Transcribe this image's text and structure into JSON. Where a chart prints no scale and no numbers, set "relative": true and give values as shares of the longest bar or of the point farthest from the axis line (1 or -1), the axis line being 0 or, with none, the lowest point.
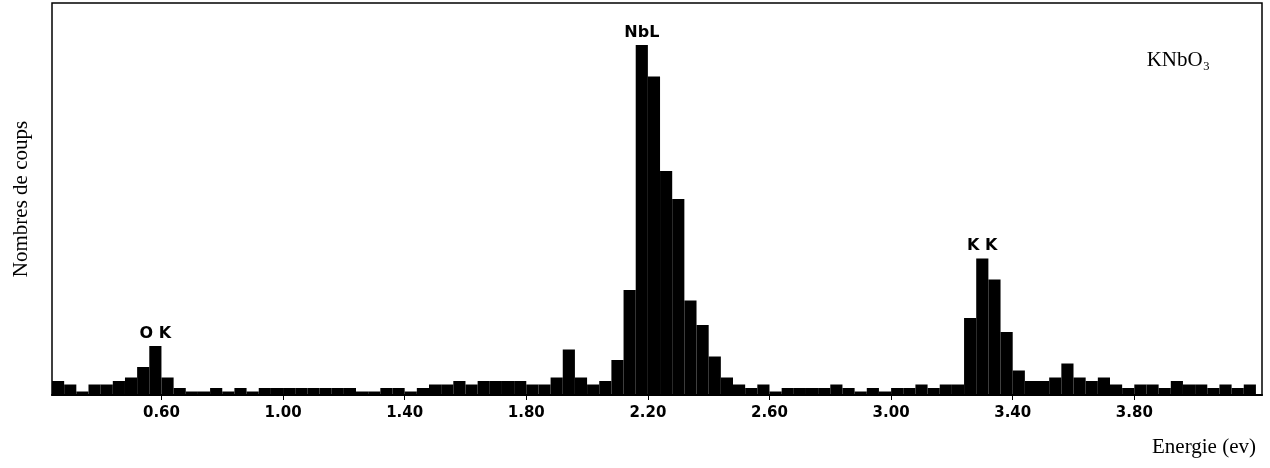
{
  "chart_data": {
    "type": "bar",
    "relative": true,
    "ylabel": "Nombres de coups",
    "xlabel": "Energie (ev)",
    "annotations": [
      "KNbO₃",
      {
        "text": "O K",
        "x": 0.58,
        "y": 0.14
      },
      {
        "text": "NbL",
        "x": 2.18,
        "y": 1.0
      },
      {
        "text": "K K",
        "x": 3.3,
        "y": 0.39
      }
    ],
    "x": [
      0.26,
      0.3,
      0.34,
      0.38,
      0.42,
      0.46,
      0.5,
      0.54,
      0.58,
      0.62,
      0.66,
      0.7,
      0.74,
      0.78,
      0.82,
      0.86,
      0.9,
      0.94,
      0.98,
      1.02,
      1.06,
      1.1,
      1.14,
      1.18,
      1.22,
      1.26,
      1.3,
      1.34,
      1.38,
      1.42,
      1.46,
      1.5,
      1.54,
      1.58,
      1.62,
      1.66,
      1.7,
      1.74,
      1.78,
      1.82,
      1.86,
      1.9,
      1.94,
      1.98,
      2.02,
      2.06,
      2.1,
      2.14,
      2.18,
      2.22,
      2.26,
      2.3,
      2.34,
      2.38,
      2.42,
      2.46,
      2.5,
      2.54,
      2.58,
      2.62,
      2.66,
      2.7,
      2.74,
      2.78,
      2.82,
      2.86,
      2.9,
      2.94,
      2.98,
      3.02,
      3.06,
      3.1,
      3.14,
      3.18,
      3.22,
      3.26,
      3.3,
      3.34,
      3.38,
      3.42,
      3.46,
      3.5,
      3.54,
      3.58,
      3.62,
      3.66,
      3.7,
      3.74,
      3.78,
      3.82,
      3.86,
      3.9,
      3.94,
      3.98,
      4.02,
      4.06,
      4.1,
      4.14,
      4.18
    ],
    "values": [
      0.04,
      0.03,
      0.01,
      0.03,
      0.03,
      0.04,
      0.05,
      0.08,
      0.14,
      0.05,
      0.02,
      0.01,
      0.01,
      0.02,
      0.01,
      0.02,
      0.01,
      0.02,
      0.02,
      0.02,
      0.02,
      0.02,
      0.02,
      0.02,
      0.02,
      0.01,
      0.01,
      0.02,
      0.02,
      0.01,
      0.02,
      0.03,
      0.03,
      0.04,
      0.03,
      0.04,
      0.04,
      0.04,
      0.04,
      0.03,
      0.03,
      0.05,
      0.13,
      0.05,
      0.03,
      0.04,
      0.1,
      0.3,
      1.0,
      0.91,
      0.64,
      0.56,
      0.27,
      0.2,
      0.11,
      0.05,
      0.03,
      0.02,
      0.03,
      0.01,
      0.02,
      0.02,
      0.02,
      0.02,
      0.03,
      0.02,
      0.01,
      0.02,
      0.01,
      0.02,
      0.02,
      0.03,
      0.02,
      0.03,
      0.03,
      0.22,
      0.39,
      0.33,
      0.18,
      0.07,
      0.04,
      0.04,
      0.05,
      0.09,
      0.05,
      0.04,
      0.05,
      0.03,
      0.02,
      0.03,
      0.03,
      0.02,
      0.04,
      0.03,
      0.03,
      0.02,
      0.03,
      0.02,
      0.03
    ],
    "color": "#000000",
    "xlim": [
      0.24,
      4.22
    ],
    "xticks": [
      {
        "value": 0.6,
        "label": "0.60"
      },
      {
        "value": 1.0,
        "label": "1.00"
      },
      {
        "value": 1.4,
        "label": "1.40"
      },
      {
        "value": 1.8,
        "label": "1.80"
      },
      {
        "value": 2.2,
        "label": "2.20"
      },
      {
        "value": 2.6,
        "label": "2.60"
      },
      {
        "value": 3.0,
        "label": "3.00"
      },
      {
        "value": 3.4,
        "label": "3.40"
      },
      {
        "value": 3.8,
        "label": "3.80"
      }
    ],
    "tick_labels": "x",
    "grid": false
  }
}
